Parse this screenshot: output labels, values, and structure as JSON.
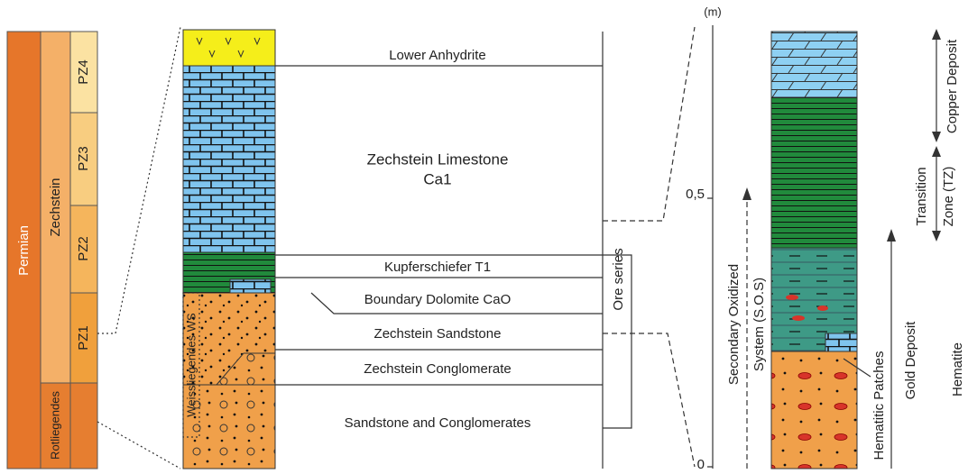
{
  "stratigraphy": {
    "system": "Permian",
    "groups": [
      "Zechstein",
      "Rotliegendes"
    ],
    "cycles": [
      "PZ4",
      "PZ3",
      "PZ2",
      "PZ1"
    ]
  },
  "section": {
    "layers": [
      "Lower Anhydrite",
      "Zechstein Limestone",
      "Ca1",
      "Kupferschiefer T1",
      "Boundary Dolomite CaO",
      "Zechstein Sandstone",
      "Zechstein Conglomerate",
      "Sandstone and Conglomerates"
    ],
    "weissliegendes": "Weissliegendes WS",
    "ore_series": "Ore series"
  },
  "scale": {
    "unit": "(m)",
    "ticks": [
      "0,5",
      "0"
    ]
  },
  "profile": {
    "sos": [
      "Secondary Oxidized",
      "System (S.O.S)"
    ],
    "hematitic_patches": "Hematitic Patches",
    "gold_deposit": "Gold Deposit",
    "hematite": "Hematite",
    "transition": [
      "Transition",
      "Zone (TZ)"
    ],
    "copper_deposit": "Copper Deposit"
  }
}
